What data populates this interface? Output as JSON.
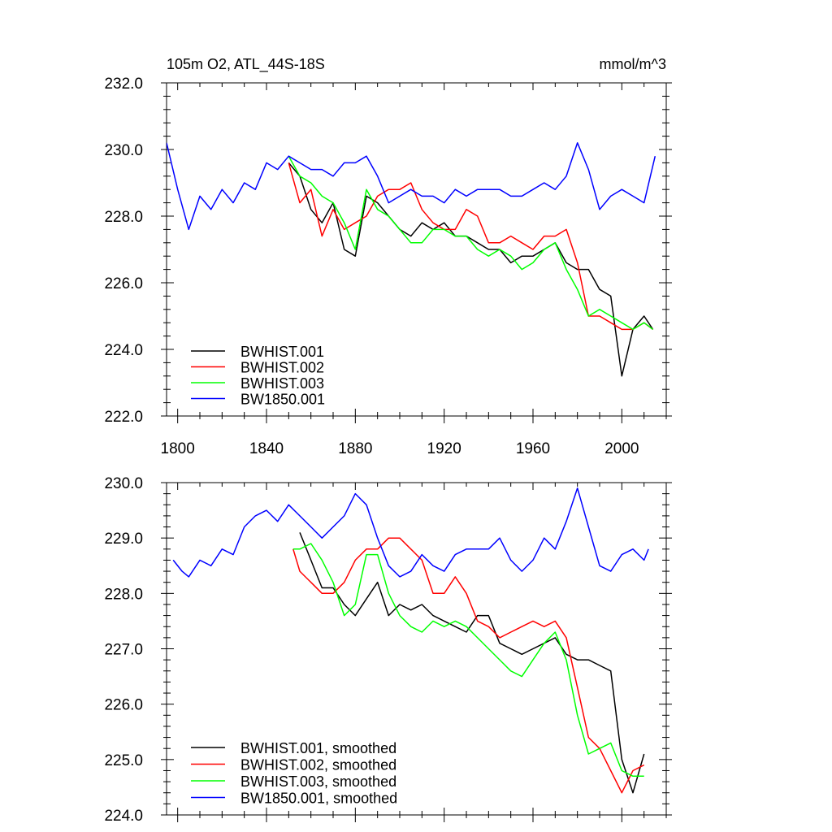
{
  "chart_data": [
    {
      "type": "line",
      "title": "105m O2, ATL_44S-18S",
      "units": "mmol/m^3",
      "xlim": [
        1795,
        2020
      ],
      "ylim": [
        222.0,
        232.0
      ],
      "xticks": [
        1800,
        1840,
        1880,
        1920,
        1960,
        2000
      ],
      "xtick_labels": [
        "1800",
        "1840",
        "1880",
        "1920",
        "1960",
        "2000"
      ],
      "yticks": [
        222.0,
        224.0,
        226.0,
        228.0,
        230.0,
        232.0
      ],
      "ytick_labels": [
        "222.0",
        "224.0",
        "226.0",
        "228.0",
        "230.0",
        "232.0"
      ],
      "legend_position": "bottom-left",
      "series": [
        {
          "name": "BWHIST.001",
          "color": "#000000",
          "x": [
            1850,
            1855,
            1860,
            1865,
            1870,
            1875,
            1880,
            1885,
            1890,
            1895,
            1900,
            1905,
            1910,
            1915,
            1920,
            1925,
            1930,
            1935,
            1940,
            1945,
            1950,
            1955,
            1960,
            1965,
            1970,
            1975,
            1980,
            1985,
            1990,
            1995,
            2000,
            2005,
            2010,
            2014
          ],
          "y": [
            229.6,
            229.2,
            228.2,
            227.8,
            228.4,
            227.0,
            226.8,
            228.6,
            228.4,
            228.0,
            227.6,
            227.4,
            227.8,
            227.6,
            227.8,
            227.4,
            227.4,
            227.2,
            227.0,
            227.0,
            226.6,
            226.8,
            226.8,
            227.0,
            227.2,
            226.6,
            226.4,
            226.4,
            225.8,
            225.6,
            223.2,
            224.6,
            225.0,
            224.6
          ]
        },
        {
          "name": "BWHIST.002",
          "color": "#ff0000",
          "x": [
            1850,
            1855,
            1860,
            1865,
            1870,
            1875,
            1880,
            1885,
            1890,
            1895,
            1900,
            1905,
            1910,
            1915,
            1920,
            1925,
            1930,
            1935,
            1940,
            1945,
            1950,
            1955,
            1960,
            1965,
            1970,
            1975,
            1980,
            1985,
            1990,
            1995,
            2000,
            2005,
            2010,
            2014
          ],
          "y": [
            229.6,
            228.4,
            228.8,
            227.4,
            228.2,
            227.6,
            227.8,
            228.0,
            228.6,
            228.8,
            228.8,
            229.0,
            228.2,
            227.8,
            227.6,
            227.6,
            228.2,
            228.0,
            227.2,
            227.2,
            227.4,
            227.2,
            227.0,
            227.4,
            227.4,
            227.6,
            226.6,
            225.0,
            225.0,
            224.8,
            224.6,
            224.6,
            224.8,
            224.6
          ]
        },
        {
          "name": "BWHIST.003",
          "color": "#00ff00",
          "x": [
            1850,
            1855,
            1860,
            1865,
            1870,
            1875,
            1880,
            1885,
            1890,
            1895,
            1900,
            1905,
            1910,
            1915,
            1920,
            1925,
            1930,
            1935,
            1940,
            1945,
            1950,
            1955,
            1960,
            1965,
            1970,
            1975,
            1980,
            1985,
            1990,
            1995,
            2000,
            2005,
            2010,
            2014
          ],
          "y": [
            229.8,
            229.2,
            229.0,
            228.6,
            228.4,
            227.8,
            227.0,
            228.8,
            228.2,
            228.0,
            227.6,
            227.2,
            227.2,
            227.6,
            227.6,
            227.4,
            227.4,
            227.0,
            226.8,
            227.0,
            226.8,
            226.4,
            226.6,
            227.0,
            227.2,
            226.4,
            225.8,
            225.0,
            225.2,
            225.0,
            224.8,
            224.6,
            224.8,
            224.6
          ]
        },
        {
          "name": "BW1850.001",
          "color": "#0000ff",
          "x": [
            1795,
            1800,
            1805,
            1810,
            1815,
            1820,
            1825,
            1830,
            1835,
            1840,
            1845,
            1850,
            1855,
            1860,
            1865,
            1870,
            1875,
            1880,
            1885,
            1890,
            1895,
            1900,
            1905,
            1910,
            1915,
            1920,
            1925,
            1930,
            1935,
            1940,
            1945,
            1950,
            1955,
            1960,
            1965,
            1970,
            1975,
            1980,
            1985,
            1990,
            1995,
            2000,
            2005,
            2010,
            2015
          ],
          "y": [
            230.2,
            228.8,
            227.6,
            228.6,
            228.2,
            228.8,
            228.4,
            229.0,
            228.8,
            229.6,
            229.4,
            229.8,
            229.6,
            229.4,
            229.4,
            229.2,
            229.6,
            229.6,
            229.8,
            229.2,
            228.4,
            228.6,
            228.8,
            228.6,
            228.6,
            228.4,
            228.8,
            228.6,
            228.8,
            228.8,
            228.8,
            228.6,
            228.6,
            228.8,
            229.0,
            228.8,
            229.2,
            230.2,
            229.4,
            228.2,
            228.6,
            228.8,
            228.6,
            228.4,
            229.8
          ]
        }
      ]
    },
    {
      "type": "line",
      "title": "",
      "xlim": [
        1795,
        2020
      ],
      "ylim": [
        224.0,
        230.0
      ],
      "xticks": [
        1800,
        1840,
        1880,
        1920,
        1960,
        2000
      ],
      "yticks": [
        224.0,
        225.0,
        226.0,
        227.0,
        228.0,
        229.0,
        230.0
      ],
      "ytick_labels": [
        "224.0",
        "225.0",
        "226.0",
        "227.0",
        "228.0",
        "229.0",
        "230.0"
      ],
      "legend_position": "bottom-left",
      "series": [
        {
          "name": "BWHIST.001, smoothed",
          "color": "#000000",
          "x": [
            1855,
            1860,
            1865,
            1870,
            1875,
            1880,
            1885,
            1890,
            1895,
            1900,
            1905,
            1910,
            1915,
            1920,
            1925,
            1930,
            1935,
            1940,
            1945,
            1950,
            1955,
            1960,
            1965,
            1970,
            1975,
            1980,
            1985,
            1990,
            1995,
            2000,
            2005,
            2010
          ],
          "y": [
            229.1,
            228.6,
            228.1,
            228.1,
            227.8,
            227.6,
            227.9,
            228.2,
            227.6,
            227.8,
            227.7,
            227.8,
            227.6,
            227.5,
            227.4,
            227.3,
            227.6,
            227.6,
            227.1,
            227.0,
            226.9,
            227.0,
            227.1,
            227.2,
            226.9,
            226.8,
            226.8,
            226.7,
            226.6,
            225.0,
            224.4,
            225.1
          ]
        },
        {
          "name": "BWHIST.002, smoothed",
          "color": "#ff0000",
          "x": [
            1852,
            1855,
            1860,
            1865,
            1870,
            1875,
            1880,
            1885,
            1890,
            1895,
            1900,
            1905,
            1910,
            1915,
            1920,
            1925,
            1930,
            1935,
            1940,
            1945,
            1950,
            1955,
            1960,
            1965,
            1970,
            1975,
            1980,
            1985,
            1990,
            1995,
            2000,
            2005,
            2010
          ],
          "y": [
            228.8,
            228.4,
            228.2,
            228.0,
            228.0,
            228.2,
            228.6,
            228.8,
            228.8,
            229.0,
            229.0,
            228.8,
            228.6,
            228.0,
            228.0,
            228.3,
            228.0,
            227.5,
            227.4,
            227.2,
            227.3,
            227.4,
            227.5,
            227.4,
            227.5,
            227.2,
            226.3,
            225.4,
            225.2,
            224.8,
            224.4,
            224.8,
            224.9
          ]
        },
        {
          "name": "BWHIST.003, smoothed",
          "color": "#00ff00",
          "x": [
            1852,
            1855,
            1860,
            1865,
            1870,
            1875,
            1880,
            1885,
            1890,
            1895,
            1900,
            1905,
            1910,
            1915,
            1920,
            1925,
            1930,
            1935,
            1940,
            1945,
            1950,
            1955,
            1960,
            1965,
            1970,
            1975,
            1980,
            1985,
            1990,
            1995,
            2000,
            2005,
            2010
          ],
          "y": [
            228.8,
            228.8,
            228.9,
            228.6,
            228.2,
            227.6,
            227.8,
            228.7,
            228.7,
            228.0,
            227.6,
            227.4,
            227.3,
            227.5,
            227.4,
            227.5,
            227.4,
            227.2,
            227.0,
            226.8,
            226.6,
            226.5,
            226.8,
            227.1,
            227.3,
            226.8,
            225.8,
            225.1,
            225.2,
            225.3,
            224.8,
            224.7,
            224.7
          ]
        },
        {
          "name": "BW1850.001, smoothed",
          "color": "#0000ff",
          "x": [
            1798,
            1802,
            1805,
            1810,
            1815,
            1820,
            1825,
            1830,
            1835,
            1840,
            1845,
            1850,
            1855,
            1860,
            1865,
            1870,
            1875,
            1880,
            1885,
            1890,
            1895,
            1900,
            1905,
            1910,
            1915,
            1920,
            1925,
            1930,
            1935,
            1940,
            1945,
            1950,
            1955,
            1960,
            1965,
            1970,
            1975,
            1980,
            1985,
            1990,
            1995,
            2000,
            2005,
            2010,
            2012
          ],
          "y": [
            228.6,
            228.4,
            228.3,
            228.6,
            228.5,
            228.8,
            228.7,
            229.2,
            229.4,
            229.5,
            229.3,
            229.6,
            229.4,
            229.2,
            229.0,
            229.2,
            229.4,
            229.8,
            229.6,
            229.0,
            228.5,
            228.3,
            228.4,
            228.7,
            228.5,
            228.4,
            228.7,
            228.8,
            228.8,
            228.8,
            229.0,
            228.6,
            228.4,
            228.6,
            229.0,
            228.8,
            229.3,
            229.9,
            229.2,
            228.5,
            228.4,
            228.7,
            228.8,
            228.6,
            228.8
          ]
        }
      ]
    }
  ]
}
